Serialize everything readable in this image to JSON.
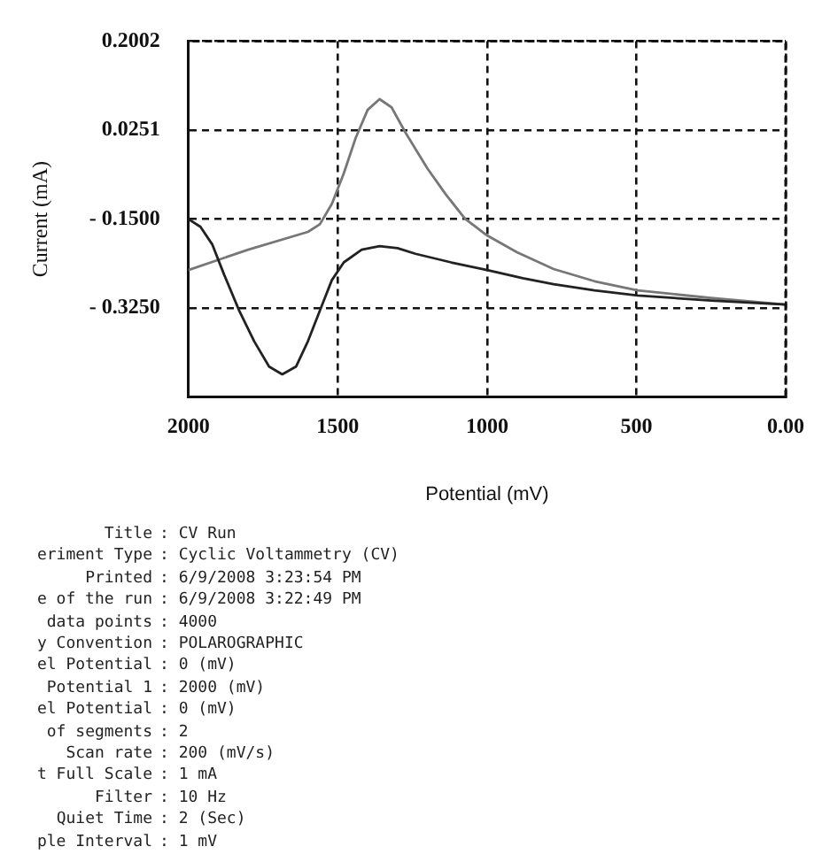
{
  "chart_data": {
    "type": "line",
    "xlabel": "Potential (mV)",
    "ylabel": "Current (mA)",
    "xlim": [
      2000,
      0
    ],
    "xticks": [
      2000,
      1500,
      1000,
      500,
      {
        "value": 0,
        "label": "0.00"
      }
    ],
    "ylim": [
      -0.5,
      0.2002
    ],
    "yticks": [
      {
        "value": -0.325,
        "label": "- 0.3250"
      },
      {
        "value": -0.15,
        "label": "- 0.1500"
      },
      0.0251,
      0.2002
    ],
    "grid": true,
    "legend": false,
    "marker": "none",
    "line_style": "solid",
    "series": [
      {
        "color": "#222222",
        "x": [
          2000,
          1960,
          1920,
          1880,
          1830,
          1780,
          1730,
          1686,
          1640,
          1600,
          1560,
          1520,
          1480,
          1420,
          1360,
          1300,
          1240,
          1120,
          1000,
          880,
          777,
          640,
          496,
          250,
          0
        ],
        "values": [
          -0.15,
          -0.165,
          -0.2,
          -0.26,
          -0.33,
          -0.39,
          -0.44,
          -0.455,
          -0.44,
          -0.39,
          -0.33,
          -0.27,
          -0.235,
          -0.21,
          -0.203,
          -0.207,
          -0.218,
          -0.235,
          -0.25,
          -0.266,
          -0.278,
          -0.29,
          -0.3,
          -0.31,
          -0.318
        ]
      },
      {
        "color": "#777777",
        "x": [
          2000,
          1800,
          1600,
          1560,
          1520,
          1480,
          1440,
          1400,
          1360,
          1320,
          1273,
          1200,
          1140,
          1074,
          1000,
          900,
          777,
          640,
          496,
          250,
          0
        ],
        "values": [
          -0.25,
          -0.21,
          -0.175,
          -0.16,
          -0.12,
          -0.06,
          0.01,
          0.065,
          0.086,
          0.07,
          0.02,
          -0.05,
          -0.1,
          -0.149,
          -0.182,
          -0.215,
          -0.248,
          -0.272,
          -0.29,
          -0.305,
          -0.318
        ]
      }
    ],
    "annotations": [
      "Title : CV Run",
      "eriment Type : Cyclic Voltammetry (CV)",
      "Printed : 6/9/2008 3:23:54 PM",
      "e of the run : 6/9/2008 3:22:49 PM",
      "data points : 4000",
      "y Convention : POLAROGRAPHIC",
      "el Potential : 0 (mV)",
      "Potential 1 : 2000 (mV)",
      "el Potential : 0 (mV)",
      "of segments : 2",
      "Scan rate : 200 (mV/s)",
      "t Full Scale : 1 mA",
      "Filter : 10 Hz",
      "Quiet Time : 2 (Sec)",
      "ple Interval : 1 mV"
    ]
  }
}
